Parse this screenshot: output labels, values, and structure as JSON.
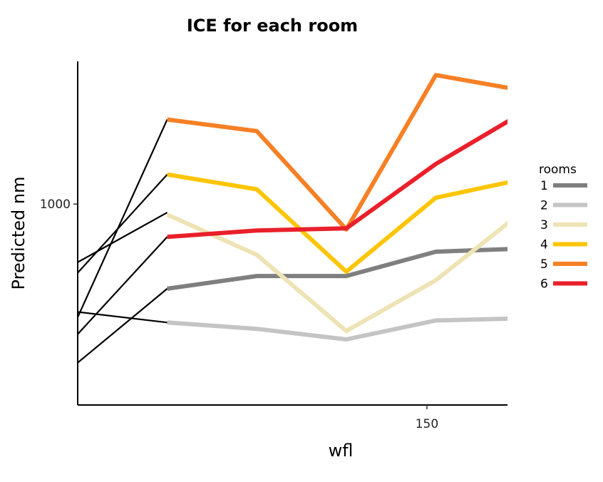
{
  "chart_data": {
    "type": "line",
    "title": "ICE for each room",
    "xlabel": "wfl",
    "ylabel": "Predicted nm",
    "x_ticks": [
      150
    ],
    "y_ticks": [
      1000
    ],
    "xlim": [
      111,
      159
    ],
    "ylim": [
      810,
      1135
    ],
    "grid": false,
    "legend": {
      "title": "rooms",
      "position": "right"
    },
    "x": [
      121,
      131,
      141,
      151,
      161
    ],
    "series": [
      {
        "name": "1",
        "color": "#7f7f7f",
        "values": [
          920,
          932,
          932,
          955,
          958
        ]
      },
      {
        "name": "2",
        "color": "#c4c4c4",
        "values": [
          888,
          882,
          872,
          890,
          892
        ]
      },
      {
        "name": "3",
        "color": "#eee3b4",
        "values": [
          990,
          952,
          880,
          928,
          995
        ]
      },
      {
        "name": "4",
        "color": "#fcc505",
        "values": [
          1028,
          1014,
          936,
          1006,
          1024
        ]
      },
      {
        "name": "5",
        "color": "#f68025",
        "values": [
          1080,
          1069,
          976,
          1122,
          1107
        ]
      },
      {
        "name": "6",
        "color": "#e9202b",
        "values": [
          969,
          975,
          977,
          1038,
          1088
        ]
      }
    ],
    "ice_curves": [
      {
        "x": [
          111,
          121
        ],
        "values": [
          945,
          992
        ]
      },
      {
        "x": [
          111,
          121
        ],
        "values": [
          935,
          1028
        ]
      },
      {
        "x": [
          111,
          121
        ],
        "values": [
          893,
          1080
        ]
      },
      {
        "x": [
          111,
          121
        ],
        "values": [
          877,
          969
        ]
      },
      {
        "x": [
          111,
          121
        ],
        "values": [
          850,
          920
        ]
      },
      {
        "x": [
          111,
          121
        ],
        "values": [
          898,
          888
        ]
      }
    ]
  }
}
